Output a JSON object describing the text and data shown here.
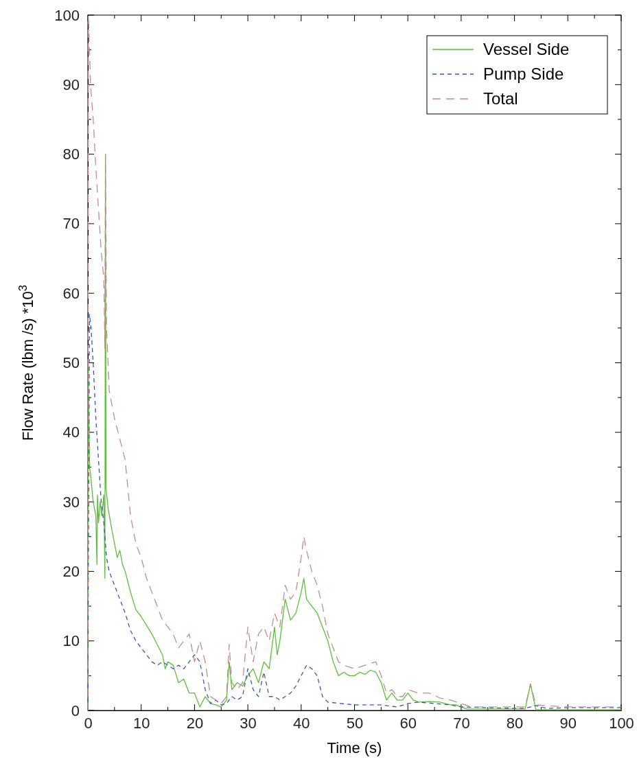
{
  "chart_data": {
    "type": "line",
    "xlabel": "Time (s)",
    "ylabel": "Flow Rate (lbm /s) *10$^{3}$",
    "xlim": [
      0,
      100
    ],
    "ylim": [
      0,
      100
    ],
    "xticks": [
      0,
      {
        "value": 5,
        "label": null
      },
      10,
      {
        "value": 15,
        "label": null
      },
      20,
      {
        "value": 25,
        "label": null
      },
      30,
      {
        "value": 35,
        "label": null
      },
      40,
      {
        "value": 45,
        "label": null
      },
      50,
      {
        "value": 55,
        "label": null
      },
      60,
      {
        "value": 65,
        "label": null
      },
      70,
      {
        "value": 75,
        "label": null
      },
      80,
      {
        "value": 85,
        "label": null
      },
      90,
      {
        "value": 95,
        "label": null
      },
      100
    ],
    "yticks": [
      0,
      {
        "value": 5,
        "label": null
      },
      10,
      {
        "value": 15,
        "label": null
      },
      20,
      {
        "value": 25,
        "label": null
      },
      30,
      {
        "value": 35,
        "label": null
      },
      40,
      {
        "value": 45,
        "label": null
      },
      50,
      {
        "value": 55,
        "label": null
      },
      60,
      {
        "value": 65,
        "label": null
      },
      70,
      {
        "value": 75,
        "label": null
      },
      80,
      {
        "value": 85,
        "label": null
      },
      90,
      {
        "value": 95,
        "label": null
      },
      100
    ],
    "grid": false,
    "legend": "top right",
    "marker": "none",
    "series": [
      {
        "name": "Vessel Side",
        "color": "#5cbf3a",
        "line_style": "solid",
        "x": [
          0,
          0.1,
          0.3,
          0.5,
          1,
          1.5,
          1.7,
          1.8,
          2,
          2.3,
          2.6,
          3,
          3.2,
          3.3,
          3.4,
          3.8,
          4.5,
          5,
          5.5,
          6,
          6.5,
          7,
          8,
          9,
          10,
          12,
          14,
          14.5,
          15,
          16,
          17,
          18,
          19,
          20,
          21,
          22,
          23,
          24,
          25,
          26,
          26.5,
          27,
          28,
          29,
          30,
          31,
          32,
          33,
          34,
          35,
          35.5,
          36,
          37,
          38,
          39,
          40,
          40.5,
          41,
          42,
          43,
          44,
          45,
          46,
          47,
          48,
          49,
          50,
          51,
          52,
          53,
          54,
          55,
          56,
          57,
          58,
          59,
          60,
          61,
          62,
          64,
          66,
          68,
          69,
          70,
          71,
          82,
          83,
          84,
          100
        ],
        "values": [
          0,
          50,
          35,
          34,
          30,
          28,
          21,
          31,
          27,
          30,
          28,
          31,
          19,
          80,
          32,
          29,
          26,
          24,
          22,
          23,
          21,
          20,
          17,
          14.5,
          13.5,
          11,
          8,
          6,
          7,
          6.5,
          4,
          4.5,
          2.5,
          2.5,
          0.5,
          2,
          1,
          0.8,
          0.5,
          1.5,
          7,
          3,
          4,
          3.5,
          5,
          6,
          4,
          7,
          6,
          12,
          8,
          10,
          16,
          13,
          14,
          17,
          19,
          16,
          15,
          14,
          12,
          10,
          7,
          5,
          5.5,
          5,
          5,
          5.5,
          5.2,
          5.8,
          5.5,
          4,
          1.5,
          2.5,
          1.5,
          1.5,
          2.5,
          1.5,
          1.2,
          1.3,
          1.2,
          0.8,
          0.8,
          0.5,
          0.2,
          0.2,
          3.8,
          0.1,
          0.1
        ]
      },
      {
        "name": "Pump Side",
        "color": "#3a55b4",
        "line_style": "dashed",
        "x": [
          0,
          0.1,
          0.3,
          0.6,
          1,
          1.5,
          2,
          2.5,
          3,
          3.5,
          4,
          5,
          6,
          7,
          8,
          9,
          10,
          11,
          12,
          13,
          14,
          15,
          16,
          17,
          18,
          19,
          20,
          21,
          22,
          23,
          24,
          25,
          26,
          27,
          28,
          29,
          30,
          31,
          32,
          33,
          34,
          35,
          36,
          37,
          38,
          39,
          40,
          41,
          42,
          43,
          44,
          45,
          50,
          55,
          58,
          60,
          62,
          65,
          68,
          70,
          80,
          82,
          84,
          86,
          90,
          100
        ],
        "values": [
          0,
          20,
          57,
          55,
          50,
          42,
          36,
          30,
          27,
          22,
          20,
          18,
          16,
          14,
          11.5,
          10,
          9,
          8,
          7,
          6.5,
          7,
          6.5,
          6,
          6.5,
          6,
          7,
          8,
          7,
          3,
          1,
          1.5,
          0.8,
          1,
          2,
          1.5,
          2,
          6,
          3,
          2,
          5.5,
          2,
          2,
          1.5,
          2,
          2.5,
          3.5,
          5,
          6.5,
          6,
          5,
          2,
          1.2,
          0.8,
          0.8,
          0.5,
          1,
          1.2,
          1,
          0.8,
          0.5,
          0.3,
          0.3,
          0.7,
          0.3,
          0.4,
          0.4
        ]
      },
      {
        "name": "Total",
        "color": "#c08c8c",
        "line_style": "dashed",
        "x": [
          0,
          0.1,
          0.5,
          1,
          1.5,
          2,
          2.5,
          3,
          3.2,
          3.3,
          3.5,
          4,
          5,
          6,
          7,
          8,
          9,
          10,
          11,
          12,
          13,
          14,
          15,
          16,
          17,
          18,
          19,
          20,
          21,
          22,
          23,
          24,
          25,
          26,
          26.5,
          27,
          28,
          29,
          30,
          31,
          32,
          33,
          34,
          35,
          36,
          37,
          38,
          39,
          40,
          40.5,
          41,
          42,
          43,
          44,
          45,
          46,
          47,
          48,
          50,
          52,
          54,
          55,
          56,
          57,
          58,
          59,
          60,
          62,
          64,
          66,
          68,
          70,
          72,
          82,
          83,
          84,
          90,
          100
        ],
        "values": [
          0,
          100,
          90,
          85,
          78,
          72,
          66,
          62,
          52,
          80,
          55,
          46,
          42,
          39,
          36,
          28,
          24,
          22,
          19,
          17,
          15,
          13,
          12,
          11,
          9,
          10,
          11,
          7,
          10,
          7,
          2,
          1.5,
          1,
          2,
          9.5,
          4,
          3,
          4,
          12,
          7,
          11,
          12,
          10,
          14,
          12,
          18,
          16,
          17,
          22,
          25,
          23,
          20,
          18,
          15,
          11,
          9,
          7,
          6.5,
          6,
          6.5,
          7,
          5,
          2.5,
          3,
          2,
          2,
          3,
          2.5,
          2.5,
          1.8,
          1.5,
          1,
          0.5,
          0.5,
          3.8,
          0.8,
          0.5,
          0.5
        ]
      }
    ]
  }
}
